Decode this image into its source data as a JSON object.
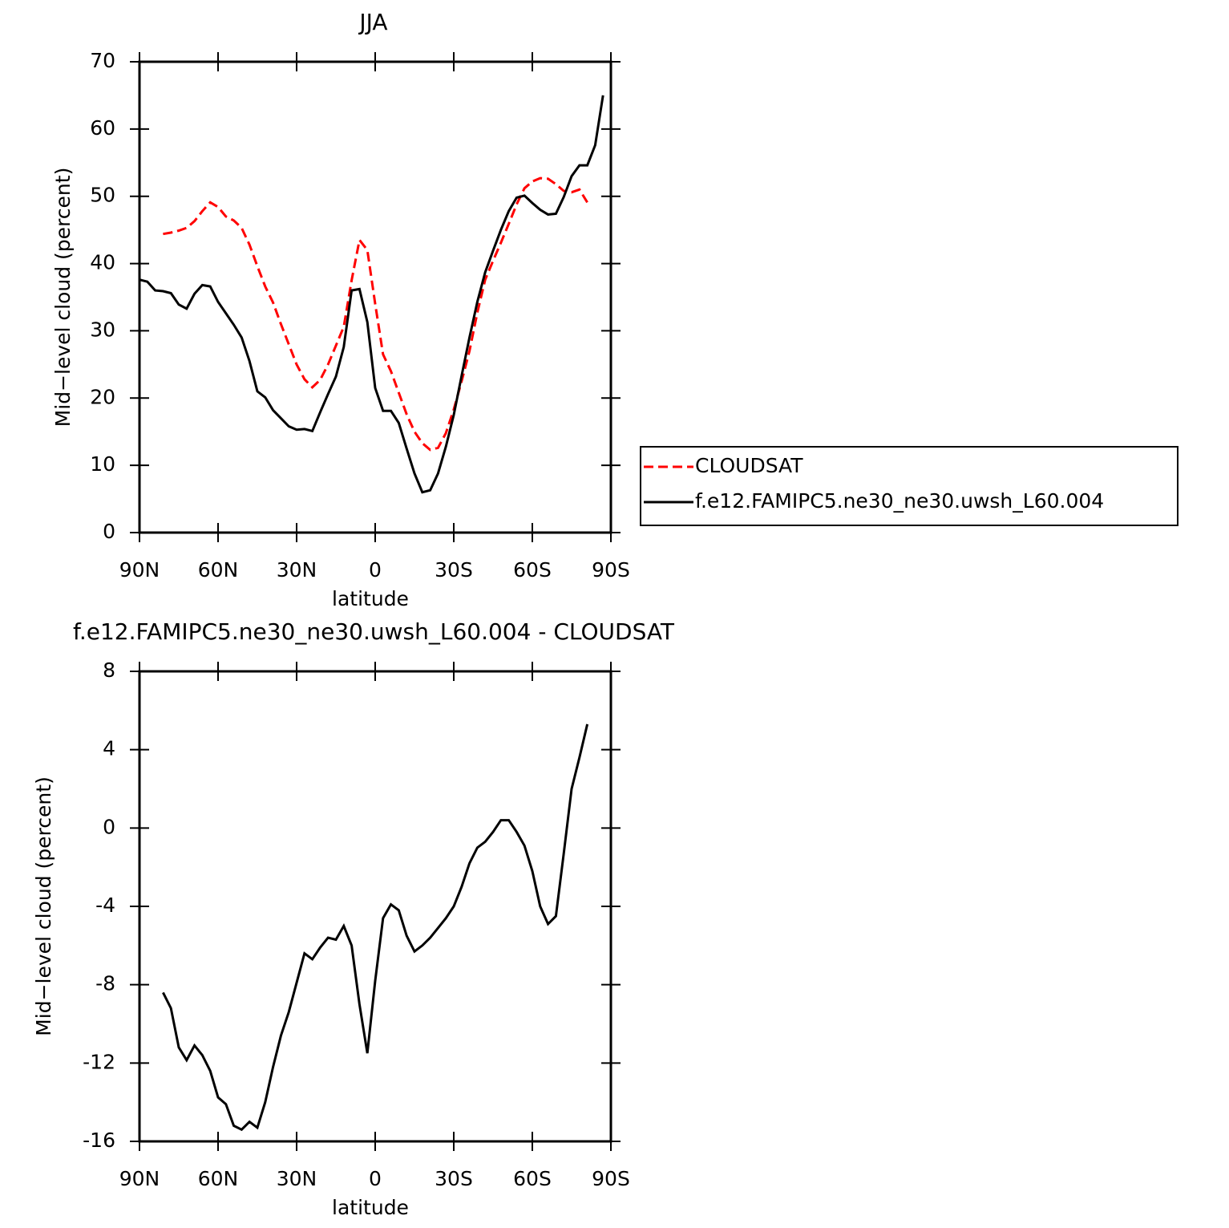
{
  "chart_data": [
    {
      "type": "line",
      "title": "JJA",
      "xlabel": "latitude",
      "ylabel": "Mid−level cloud (percent)",
      "x": [
        90,
        87,
        84,
        81,
        78,
        75,
        72,
        69,
        66,
        63,
        60,
        57,
        54,
        51,
        48,
        45,
        42,
        39,
        36,
        33,
        30,
        27,
        24,
        21,
        18,
        15,
        12,
        9,
        6,
        3,
        0,
        -3,
        -6,
        -9,
        -12,
        -15,
        -18,
        -21,
        -24,
        -27,
        -30,
        -33,
        -36,
        -39,
        -42,
        -45,
        -48,
        -51,
        -54,
        -57,
        -60,
        -63,
        -66,
        -69,
        -72,
        -75,
        -78,
        -81,
        -84,
        -87,
        -90
      ],
      "series": [
        {
          "name": "CLOUDSAT",
          "color": "#ff0000",
          "style": "dashed",
          "values": [
            null,
            null,
            null,
            44.4,
            44.6,
            44.9,
            45.3,
            46.3,
            47.8,
            49.1,
            48.4,
            47.0,
            46.4,
            45.3,
            42.8,
            39.6,
            36.6,
            34.2,
            31.0,
            28.0,
            25.0,
            22.8,
            21.6,
            22.7,
            25.0,
            27.8,
            30.6,
            37.5,
            43.5,
            42.0,
            34.0,
            26.5,
            24.0,
            20.8,
            17.6,
            15.0,
            13.3,
            12.3,
            12.6,
            14.8,
            18.3,
            22.5,
            27.0,
            32.7,
            37.6,
            40.4,
            43.1,
            45.9,
            48.8,
            51.2,
            52.2,
            52.7,
            52.6,
            51.8,
            50.8,
            50.6,
            51.0,
            49.1,
            null,
            null,
            null
          ]
        },
        {
          "name": "f.e12.FAMIPC5.ne30_ne30.uwsh_L60.004",
          "color": "#000000",
          "style": "solid",
          "values": [
            37.6,
            37.3,
            36.0,
            35.9,
            35.6,
            33.9,
            33.3,
            35.5,
            36.8,
            36.6,
            34.3,
            32.6,
            30.9,
            29.0,
            25.5,
            21.0,
            20.1,
            18.2,
            17.0,
            15.8,
            15.3,
            15.4,
            15.1,
            17.9,
            20.6,
            23.2,
            27.6,
            36.0,
            36.2,
            31.3,
            21.5,
            18.1,
            18.1,
            16.3,
            12.5,
            8.8,
            6.0,
            6.3,
            8.8,
            12.8,
            17.5,
            23.3,
            29.0,
            34.3,
            38.7,
            41.9,
            45.0,
            47.8,
            49.8,
            50.1,
            49.0,
            48.0,
            47.3,
            47.4,
            49.9,
            53.0,
            54.6,
            54.6,
            57.6,
            65.0,
            null
          ]
        }
      ],
      "xlim": [
        90,
        -90
      ],
      "xticks": [
        {
          "value": 90,
          "label": "90N"
        },
        {
          "value": 60,
          "label": "60N"
        },
        {
          "value": 30,
          "label": "30N"
        },
        0,
        {
          "value": -30,
          "label": "30S"
        },
        {
          "value": -60,
          "label": "60S"
        },
        {
          "value": -90,
          "label": "90S"
        }
      ],
      "ylim": [
        0,
        70
      ],
      "yticks": [
        0,
        10,
        20,
        30,
        40,
        50,
        60,
        70
      ],
      "legend": "right"
    },
    {
      "type": "line",
      "title": "f.e12.FAMIPC5.ne30_ne30.uwsh_L60.004 - CLOUDSAT",
      "xlabel": "latitude",
      "ylabel": "Mid−level cloud (percent)",
      "x": [
        81,
        78,
        75,
        72,
        69,
        66,
        63,
        60,
        57,
        54,
        51,
        48,
        45,
        42,
        39,
        36,
        33,
        30,
        27,
        24,
        21,
        18,
        15,
        12,
        9,
        6,
        3,
        0,
        -3,
        -6,
        -9,
        -12,
        -15,
        -18,
        -21,
        -24,
        -27,
        -30,
        -33,
        -36,
        -39,
        -42,
        -45,
        -48,
        -51,
        -54,
        -57,
        -60,
        -63,
        -66,
        -69,
        -72,
        -75,
        -78,
        -81
      ],
      "series": [
        {
          "color": "#000000",
          "style": "solid",
          "values": [
            -8.4,
            -9.2,
            -11.2,
            -11.85,
            -11.1,
            -11.6,
            -12.4,
            -13.75,
            -14.1,
            -15.2,
            -15.4,
            -15.0,
            -15.3,
            -14.0,
            -12.2,
            -10.6,
            -9.4,
            -7.9,
            -6.4,
            -6.7,
            -6.1,
            -5.6,
            -5.7,
            -5.0,
            -6.0,
            -9.0,
            -11.5,
            -7.8,
            -4.6,
            -3.9,
            -4.2,
            -5.5,
            -6.3,
            -6.0,
            -5.6,
            -5.1,
            -4.6,
            -4.0,
            -3.0,
            -1.8,
            -1.0,
            -0.7,
            -0.2,
            0.4,
            0.4,
            -0.2,
            -0.9,
            -2.2,
            -4.0,
            -4.9,
            -4.5,
            -1.3,
            2.0,
            3.6,
            5.3
          ]
        }
      ],
      "xlim": [
        90,
        -90
      ],
      "xticks": [
        {
          "value": 90,
          "label": "90N"
        },
        {
          "value": 60,
          "label": "60N"
        },
        {
          "value": 30,
          "label": "30N"
        },
        0,
        {
          "value": -30,
          "label": "30S"
        },
        {
          "value": -60,
          "label": "60S"
        },
        {
          "value": -90,
          "label": "90S"
        }
      ],
      "ylim": [
        -16,
        8
      ],
      "yticks": [
        -16,
        -12,
        -8,
        -4,
        0,
        4,
        8
      ]
    }
  ]
}
